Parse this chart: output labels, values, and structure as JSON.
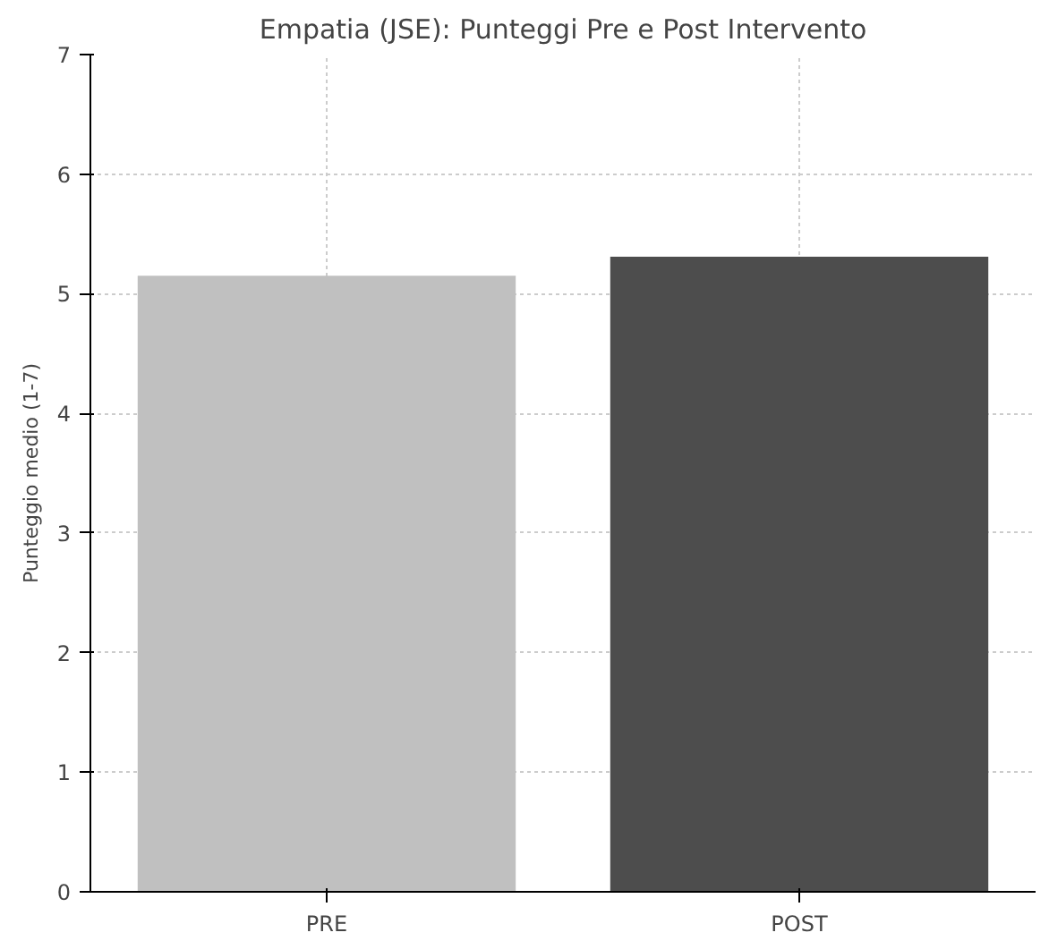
{
  "chart_data": {
    "type": "bar",
    "title": "Empatia (JSE): Punteggi Pre e Post Intervento",
    "ylabel": "Punteggio medio (1-7)",
    "categories": [
      "PRE",
      "POST"
    ],
    "values": [
      5.15,
      5.31
    ],
    "colors": [
      "#c0c0c0",
      "#4d4d4d"
    ],
    "ylim": [
      0,
      7
    ],
    "yticks": [
      0,
      1,
      2,
      3,
      4,
      5,
      6,
      7
    ],
    "grid": true
  }
}
